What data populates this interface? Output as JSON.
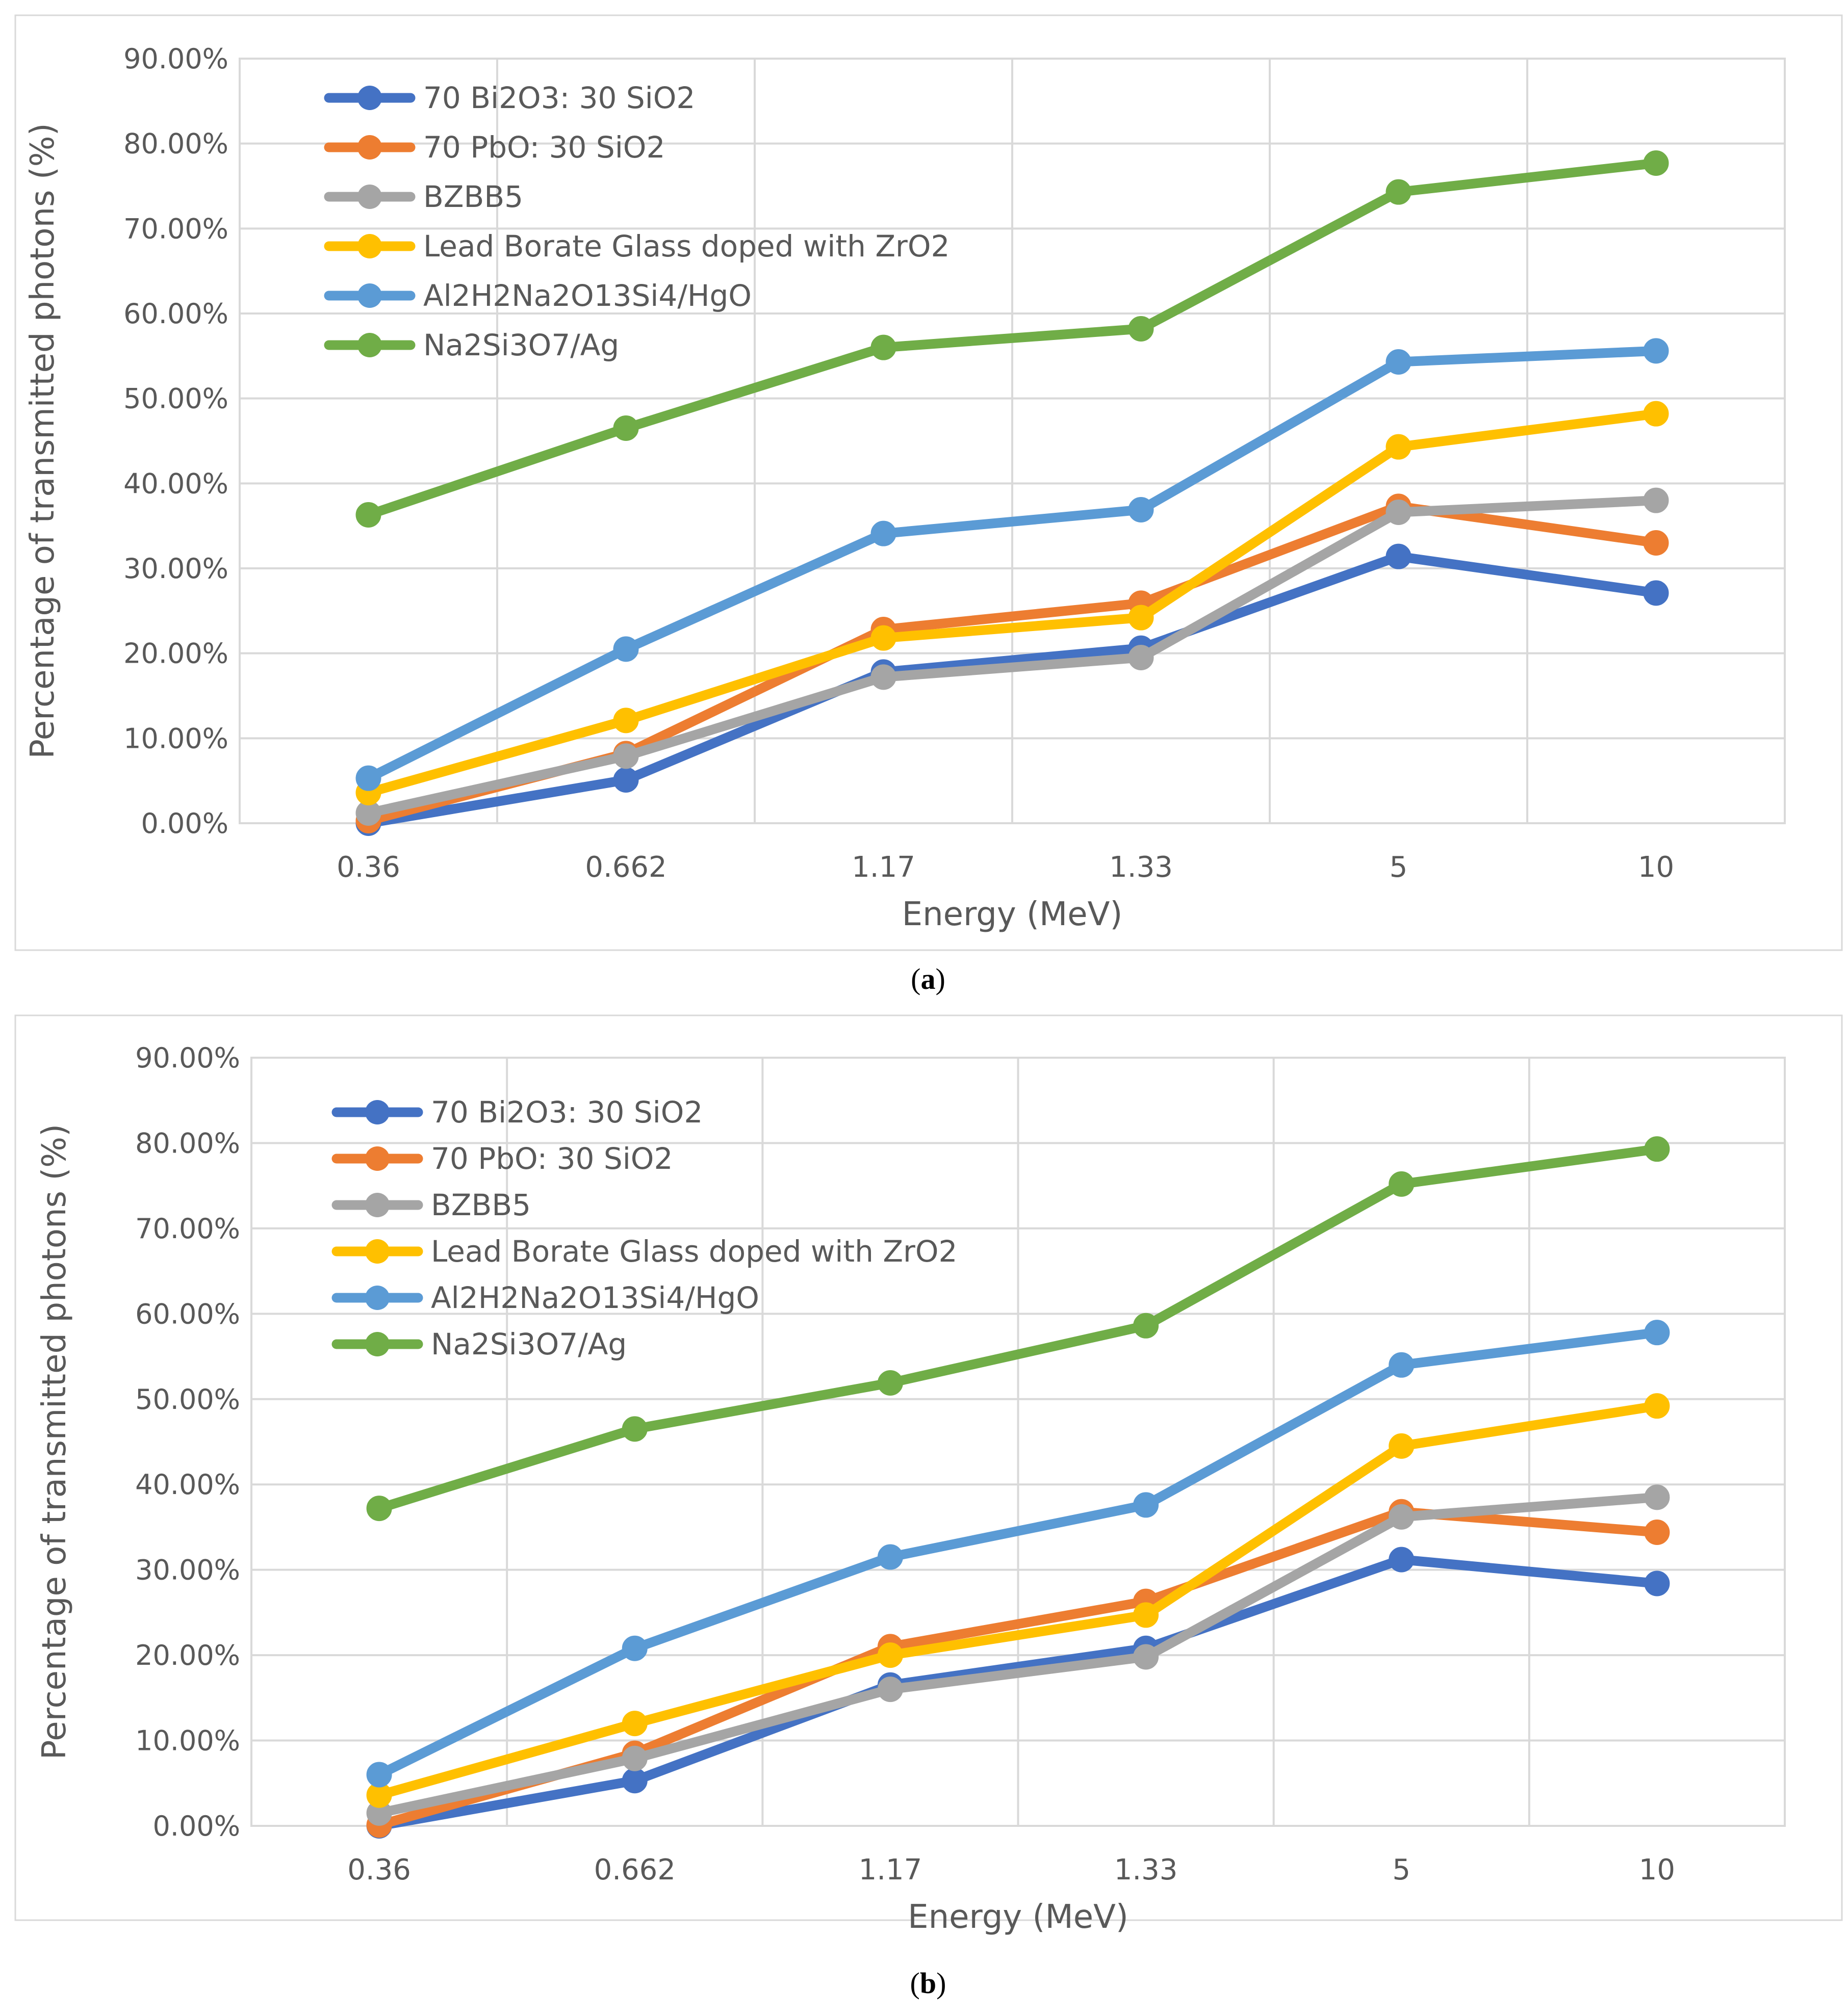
{
  "chart_data": [
    {
      "type": "line",
      "panel_label": "a",
      "xlabel": "Energy (MeV)",
      "ylabel": "Percentage of transmitted photons (%)",
      "categories": [
        "0.36",
        "0.662",
        "1.17",
        "1.33",
        "5",
        "10"
      ],
      "ylim": [
        0,
        90
      ],
      "yticks": [
        "0.00%",
        "10.00%",
        "20.00%",
        "30.00%",
        "40.00%",
        "50.00%",
        "60.00%",
        "70.00%",
        "80.00%",
        "90.00%"
      ],
      "grid": true,
      "legend_position": "top-left",
      "series": [
        {
          "name": "70 Bi2O3: 30 SiO2",
          "color": "#4472C4",
          "values": [
            0.0,
            5.1,
            17.8,
            20.6,
            31.4,
            27.1
          ]
        },
        {
          "name": "70 PbO: 30 SiO2",
          "color": "#ED7D31",
          "values": [
            0.3,
            8.2,
            22.8,
            25.9,
            37.3,
            33.0
          ]
        },
        {
          "name": "BZBB5",
          "color": "#A5A5A5",
          "values": [
            1.2,
            7.9,
            17.2,
            19.5,
            36.6,
            38.0
          ]
        },
        {
          "name": "Lead Borate Glass doped with ZrO2",
          "color": "#FFC000",
          "values": [
            3.6,
            12.1,
            21.8,
            24.2,
            44.3,
            48.2
          ]
        },
        {
          "name": "Al2H2Na2O13Si4/HgO",
          "color": "#5B9BD5",
          "values": [
            5.3,
            20.5,
            34.1,
            36.9,
            54.3,
            55.6
          ]
        },
        {
          "name": "Na2Si3O7/Ag",
          "color": "#70AD47",
          "values": [
            36.3,
            46.5,
            56.0,
            58.2,
            74.3,
            77.7
          ]
        }
      ]
    },
    {
      "type": "line",
      "panel_label": "b",
      "xlabel": "Energy (MeV)",
      "ylabel": "Percentage of transmitted photons (%)",
      "categories": [
        "0.36",
        "0.662",
        "1.17",
        "1.33",
        "5",
        "10"
      ],
      "ylim": [
        0,
        90
      ],
      "yticks": [
        "0.00%",
        "10.00%",
        "20.00%",
        "30.00%",
        "40.00%",
        "50.00%",
        "60.00%",
        "70.00%",
        "80.00%",
        "90.00%"
      ],
      "grid": true,
      "legend_position": "top-left",
      "series": [
        {
          "name": "70 Bi2O3: 30 SiO2",
          "color": "#4472C4",
          "values": [
            0.0,
            5.3,
            16.5,
            20.8,
            31.2,
            28.4
          ]
        },
        {
          "name": "70 PbO: 30 SiO2",
          "color": "#ED7D31",
          "values": [
            0.1,
            8.5,
            21.0,
            26.3,
            36.8,
            34.4
          ]
        },
        {
          "name": "BZBB5",
          "color": "#A5A5A5",
          "values": [
            1.5,
            7.9,
            16.0,
            19.8,
            36.2,
            38.5
          ]
        },
        {
          "name": "Lead Borate Glass doped with ZrO2",
          "color": "#FFC000",
          "values": [
            3.6,
            12.0,
            20.0,
            24.7,
            44.5,
            49.2
          ]
        },
        {
          "name": "Al2H2Na2O13Si4/HgO",
          "color": "#5B9BD5",
          "values": [
            6.0,
            20.8,
            31.5,
            37.6,
            54.0,
            57.8
          ]
        },
        {
          "name": "Na2Si3O7/Ag",
          "color": "#70AD47",
          "values": [
            37.2,
            46.5,
            51.9,
            58.6,
            75.2,
            79.3
          ]
        }
      ]
    }
  ]
}
